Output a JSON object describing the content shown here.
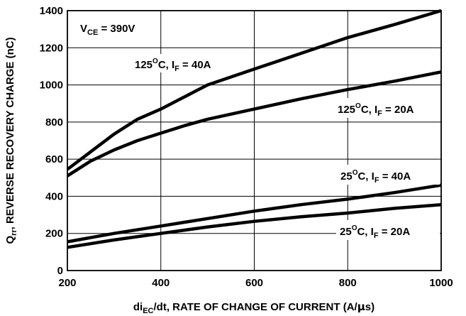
{
  "chart_data": {
    "type": "line",
    "xlabel": {
      "pre": "di",
      "sub": "EC",
      "post": "/dt, RATE OF CHANGE OF CURRENT (A/",
      "mu": "μ",
      "end": "s)"
    },
    "ylabel": {
      "pre": "Q",
      "sub": "rr",
      "post": ", REVERSE RECOVERY CHARGE (nC)"
    },
    "xlim": [
      200,
      1000
    ],
    "ylim": [
      0,
      1400
    ],
    "x_ticks": [
      200,
      400,
      600,
      800,
      1000
    ],
    "y_ticks": [
      0,
      200,
      400,
      600,
      800,
      1000,
      1200,
      1400
    ],
    "grid": true,
    "condition_label": {
      "pre": "V",
      "sub": "CE",
      "post": " = 390V"
    },
    "series": [
      {
        "name": "125°C, IF = 40A",
        "label": {
          "temp": "125",
          "deg": "O",
          "mid": "C, I",
          "sub": "F",
          "post": " = 40A"
        },
        "x": [
          200,
          250,
          300,
          350,
          400,
          450,
          500,
          600,
          700,
          800,
          900,
          1000
        ],
        "y": [
          545,
          640,
          735,
          815,
          870,
          935,
          1000,
          1085,
          1170,
          1255,
          1325,
          1400
        ]
      },
      {
        "name": "125°C, IF = 20A",
        "label": {
          "temp": "125",
          "deg": "O",
          "mid": "C, I",
          "sub": "F",
          "post": " = 20A"
        },
        "x": [
          200,
          250,
          300,
          350,
          400,
          450,
          500,
          600,
          700,
          800,
          900,
          1000
        ],
        "y": [
          510,
          590,
          650,
          700,
          740,
          780,
          815,
          870,
          925,
          975,
          1020,
          1070
        ]
      },
      {
        "name": "25°C, IF = 40A",
        "label": {
          "temp": "25",
          "deg": "O",
          "mid": "C, I",
          "sub": "F",
          "post": " = 40A"
        },
        "x": [
          200,
          300,
          400,
          500,
          600,
          700,
          800,
          900,
          1000
        ],
        "y": [
          155,
          200,
          240,
          280,
          320,
          355,
          385,
          420,
          460
        ]
      },
      {
        "name": "25°C, IF = 20A",
        "label": {
          "temp": "25",
          "deg": "O",
          "mid": "C, I",
          "sub": "F",
          "post": " = 20A"
        },
        "x": [
          200,
          300,
          400,
          500,
          600,
          700,
          800,
          900,
          1000
        ],
        "y": [
          125,
          165,
          200,
          235,
          265,
          290,
          310,
          335,
          355
        ]
      }
    ]
  }
}
